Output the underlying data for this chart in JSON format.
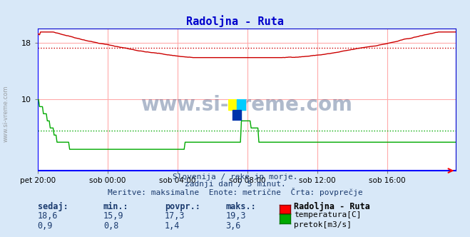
{
  "title": "Radoljna - Ruta",
  "bg_color": "#d8e8f8",
  "plot_bg_color": "#ffffff",
  "grid_color": "#ffaaaa",
  "border_color": "#0000cc",
  "x_labels": [
    "pet 20:00",
    "sob 00:00",
    "sob 04:00",
    "sob 08:00",
    "sob 12:00",
    "sob 16:00"
  ],
  "x_ticks": [
    0,
    72,
    144,
    216,
    288,
    360
  ],
  "total_points": 432,
  "temp_avg": 17.3,
  "flow_avg": 1.4,
  "temp_color": "#cc0000",
  "flow_color": "#00aa00",
  "watermark": "www.si-vreme.com",
  "watermark_color": "#1a3a6e",
  "subtitle1": "Slovenija / reke in morje.",
  "subtitle2": "zadnji dan / 5 minut.",
  "subtitle3": "Meritve: maksimalne  Enote: metrične  Črta: povprečje",
  "table_headers": [
    "sedaj:",
    "min.:",
    "povpr.:",
    "maks.:"
  ],
  "table_temp": [
    "18,6",
    "15,9",
    "17,3",
    "19,3"
  ],
  "table_flow": [
    "0,9",
    "0,8",
    "1,4",
    "3,6"
  ],
  "legend_station": "Radoljna - Ruta",
  "legend_temp": "temperatura[C]",
  "legend_flow": "pretok[m3/s]",
  "text_color": "#1a3a6e",
  "title_color": "#0000cc"
}
